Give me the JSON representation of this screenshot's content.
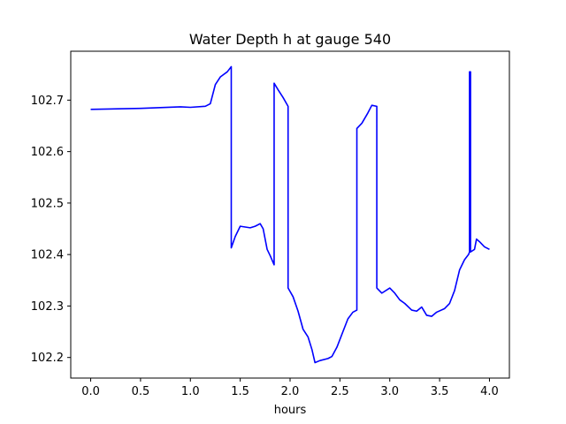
{
  "chart_data": {
    "type": "line",
    "title": "Water Depth h at gauge 540",
    "xlabel": "hours",
    "ylabel": "",
    "xlim": [
      -0.2,
      4.2
    ],
    "ylim": [
      102.16,
      102.795
    ],
    "xticks": [
      0.0,
      0.5,
      1.0,
      1.5,
      2.0,
      2.5,
      3.0,
      3.5,
      4.0
    ],
    "xtick_labels": [
      "0.0",
      "0.5",
      "1.0",
      "1.5",
      "2.0",
      "2.5",
      "3.0",
      "3.5",
      "4.0"
    ],
    "yticks": [
      102.2,
      102.3,
      102.4,
      102.5,
      102.6,
      102.7
    ],
    "ytick_labels": [
      "102.2",
      "102.3",
      "102.4",
      "102.5",
      "102.6",
      "102.7"
    ],
    "grid": false,
    "legend": "none",
    "series": [
      {
        "color": "#0000ff",
        "points": [
          [
            0.0,
            102.682
          ],
          [
            0.5,
            102.684
          ],
          [
            0.9,
            102.687
          ],
          [
            1.0,
            102.686
          ],
          [
            1.15,
            102.688
          ],
          [
            1.2,
            102.693
          ],
          [
            1.25,
            102.73
          ],
          [
            1.3,
            102.745
          ],
          [
            1.37,
            102.755
          ],
          [
            1.41,
            102.765
          ],
          [
            1.41,
            102.413
          ],
          [
            1.45,
            102.435
          ],
          [
            1.5,
            102.455
          ],
          [
            1.6,
            102.452
          ],
          [
            1.65,
            102.455
          ],
          [
            1.7,
            102.46
          ],
          [
            1.73,
            102.45
          ],
          [
            1.77,
            102.41
          ],
          [
            1.8,
            102.398
          ],
          [
            1.84,
            102.38
          ],
          [
            1.84,
            102.733
          ],
          [
            1.88,
            102.72
          ],
          [
            1.93,
            102.705
          ],
          [
            1.98,
            102.688
          ],
          [
            1.98,
            102.335
          ],
          [
            2.03,
            102.318
          ],
          [
            2.08,
            102.29
          ],
          [
            2.13,
            102.255
          ],
          [
            2.18,
            102.24
          ],
          [
            2.22,
            102.215
          ],
          [
            2.25,
            102.19
          ],
          [
            2.3,
            102.194
          ],
          [
            2.38,
            102.198
          ],
          [
            2.42,
            102.202
          ],
          [
            2.47,
            102.22
          ],
          [
            2.52,
            102.245
          ],
          [
            2.58,
            102.275
          ],
          [
            2.63,
            102.288
          ],
          [
            2.67,
            102.292
          ],
          [
            2.67,
            102.645
          ],
          [
            2.72,
            102.655
          ],
          [
            2.78,
            102.675
          ],
          [
            2.82,
            102.69
          ],
          [
            2.87,
            102.688
          ],
          [
            2.87,
            102.335
          ],
          [
            2.92,
            102.325
          ],
          [
            3.0,
            102.335
          ],
          [
            3.05,
            102.325
          ],
          [
            3.1,
            102.312
          ],
          [
            3.15,
            102.305
          ],
          [
            3.22,
            102.292
          ],
          [
            3.27,
            102.29
          ],
          [
            3.32,
            102.298
          ],
          [
            3.37,
            102.282
          ],
          [
            3.42,
            102.28
          ],
          [
            3.47,
            102.288
          ],
          [
            3.55,
            102.295
          ],
          [
            3.6,
            102.305
          ],
          [
            3.65,
            102.33
          ],
          [
            3.7,
            102.37
          ],
          [
            3.75,
            102.39
          ],
          [
            3.79,
            102.4
          ],
          [
            3.8,
            102.405
          ],
          [
            3.8,
            102.755
          ],
          [
            3.81,
            102.755
          ],
          [
            3.81,
            102.405
          ],
          [
            3.85,
            102.41
          ],
          [
            3.87,
            102.43
          ],
          [
            3.9,
            102.425
          ],
          [
            3.95,
            102.415
          ],
          [
            4.0,
            102.41
          ]
        ]
      }
    ]
  }
}
